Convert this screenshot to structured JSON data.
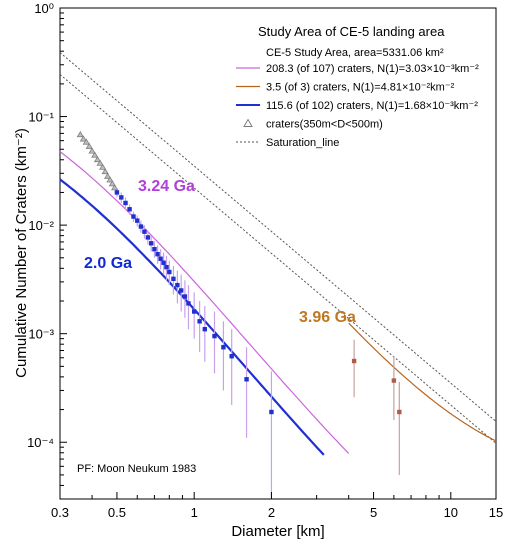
{
  "chart_data": {
    "type": "scatter",
    "x_axis": {
      "label": "Diameter [km]",
      "scale": "log",
      "range": [
        0.3,
        15
      ],
      "tick_labels": [
        "0.3",
        "0.5",
        "1",
        "2",
        "5",
        "10",
        "15"
      ],
      "tick_values": [
        0.3,
        0.5,
        1,
        2,
        5,
        10,
        15
      ]
    },
    "y_axis": {
      "label": "Cumulative Number of Craters (km⁻²)",
      "scale": "log",
      "range": [
        3e-05,
        1
      ],
      "tick_labels": [
        "10⁻⁴",
        "10⁻³",
        "10⁻²",
        "10⁻¹",
        "10⁰"
      ],
      "tick_values": [
        0.0001,
        0.001,
        0.01,
        0.1,
        1
      ]
    },
    "legend": {
      "title": "Study Area of CE-5 landing area",
      "area_text": "CE-5 Study Area, area=5331.06 km²",
      "placement": "top-right",
      "entries": [
        {
          "label": "208.3 (of 107) craters, N(1)=3.03×10⁻³km⁻²",
          "color": "#cc66dd",
          "kind": "line"
        },
        {
          "label": "3.5 (of 3) craters, N(1)=4.81×10⁻²km⁻²",
          "color": "#b8651e",
          "kind": "line"
        },
        {
          "label": "115.6 (of 102) craters, N(1)=1.68×10⁻³km⁻²",
          "color": "#1f2fd0",
          "kind": "line"
        },
        {
          "label": "craters(350m<D<500m)",
          "color": "#777777",
          "kind": "triangle"
        },
        {
          "label": "Saturation_line",
          "color": "#555555",
          "kind": "dotted"
        }
      ]
    },
    "annotations": {
      "age_purple": {
        "text": "3.24 Ga",
        "color": "#b040d8"
      },
      "age_blue": {
        "text": "2.0 Ga",
        "color": "#1228d0"
      },
      "age_orange": {
        "text": "3.96 Ga",
        "color": "#c07820"
      },
      "production_function": "PF: Moon Neukum 1983"
    },
    "series": [
      {
        "name": "craters(350m<D<500m)",
        "marker": "triangle",
        "color": "#777777",
        "x": [
          0.36,
          0.37,
          0.38,
          0.39,
          0.4,
          0.41,
          0.42,
          0.43,
          0.44,
          0.45,
          0.46,
          0.47,
          0.48,
          0.49
        ],
        "y": [
          0.068,
          0.062,
          0.058,
          0.053,
          0.048,
          0.044,
          0.04,
          0.037,
          0.034,
          0.031,
          0.028,
          0.026,
          0.024,
          0.022
        ]
      },
      {
        "name": "115.6 (of 102) craters",
        "marker": "square",
        "color": "#1f2fd0",
        "x": [
          0.5,
          0.52,
          0.54,
          0.56,
          0.58,
          0.6,
          0.62,
          0.64,
          0.66,
          0.68,
          0.7,
          0.72,
          0.74,
          0.76,
          0.78,
          0.8,
          0.83,
          0.86,
          0.89,
          0.92,
          0.95,
          1.0,
          1.05,
          1.1,
          1.2,
          1.3,
          1.4,
          1.6,
          2.0
        ],
        "y": [
          0.02,
          0.018,
          0.016,
          0.014,
          0.012,
          0.011,
          0.0097,
          0.0087,
          0.0077,
          0.0068,
          0.006,
          0.0054,
          0.0049,
          0.0045,
          0.0041,
          0.0037,
          0.0032,
          0.0028,
          0.0025,
          0.0022,
          0.0019,
          0.0016,
          0.0013,
          0.0011,
          0.00095,
          0.00075,
          0.00062,
          0.00038,
          0.00019
        ],
        "err_lo": [
          0.018,
          0.016,
          0.014,
          0.0125,
          0.0107,
          0.0097,
          0.0085,
          0.0075,
          0.0066,
          0.0057,
          0.005,
          0.0044,
          0.0039,
          0.0035,
          0.0031,
          0.0028,
          0.0023,
          0.0019,
          0.0016,
          0.0014,
          0.0011,
          0.0009,
          0.00068,
          0.00055,
          0.00043,
          0.0003,
          0.00022,
          0.00011,
          3e-05
        ],
        "err_hi": [
          0.022,
          0.02,
          0.018,
          0.0155,
          0.0133,
          0.0123,
          0.011,
          0.01,
          0.0089,
          0.008,
          0.0071,
          0.0065,
          0.006,
          0.0056,
          0.0052,
          0.0047,
          0.0042,
          0.0038,
          0.0035,
          0.0031,
          0.0028,
          0.0024,
          0.002,
          0.0018,
          0.0016,
          0.0013,
          0.0011,
          0.00075,
          0.00045
        ]
      },
      {
        "name": "3.5 (of 3) craters",
        "marker": "square",
        "color": "#b05a4a",
        "x": [
          4.2,
          6.0,
          6.3
        ],
        "y": [
          0.00056,
          0.00037,
          0.00019
        ],
        "err_lo": [
          0.00026,
          0.00016,
          5e-05
        ],
        "err_hi": [
          0.00088,
          0.00062,
          0.00036
        ]
      }
    ],
    "fit_lines": [
      {
        "name": "3.24 Ga isochron",
        "color": "#cc66dd",
        "n1": 0.00303,
        "x_range": [
          0.3,
          4.0
        ]
      },
      {
        "name": "2.0 Ga isochron",
        "color": "#1f2fd0",
        "n1": 0.00168,
        "x_range": [
          0.3,
          3.2
        ]
      },
      {
        "name": "3.96 Ga isochron",
        "color": "#b8651e",
        "n1": 0.0481,
        "x_range": [
          4.0,
          15
        ]
      }
    ],
    "saturation_lines": [
      {
        "name": "saturation upper",
        "y_at_1km": 0.035
      },
      {
        "name": "saturation lower",
        "y_at_1km": 0.022
      }
    ],
    "grid": false
  }
}
